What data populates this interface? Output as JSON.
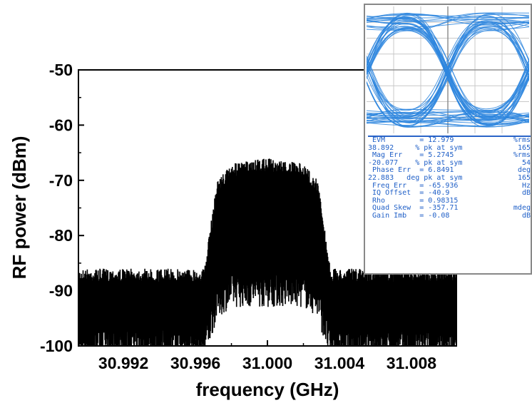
{
  "chart_data": {
    "type": "line",
    "xlabel": "frequency (GHz)",
    "ylabel": "RF power (dBm)",
    "xlim": [
      30.9895,
      31.0105
    ],
    "ylim": [
      -100,
      -50
    ],
    "x_ticks": [
      "30.992",
      "30.996",
      "31.000",
      "31.004",
      "31.008"
    ],
    "x_tick_values": [
      30.992,
      30.996,
      31.0,
      31.004,
      31.008
    ],
    "y_ticks": [
      "-50",
      "-60",
      "-70",
      "-80",
      "-90",
      "-100"
    ],
    "y_tick_values": [
      -50,
      -60,
      -70,
      -80,
      -90,
      -100
    ],
    "grid": false,
    "series": [
      {
        "color": "#000000",
        "description_points": {
          "x": [
            30.9895,
            30.992,
            30.994,
            30.9965,
            30.9972,
            30.998,
            31.0,
            31.002,
            31.0028,
            31.0035,
            31.006,
            31.008,
            31.0105
          ],
          "y_max": [
            -86,
            -86,
            -86,
            -86,
            -70,
            -67,
            -66,
            -67,
            -70,
            -86,
            -86,
            -86,
            -86
          ],
          "y_min": [
            -100,
            -100,
            -100,
            -100,
            -92,
            -90,
            -90,
            -90,
            -92,
            -100,
            -100,
            -100,
            -100
          ]
        }
      }
    ]
  },
  "inset": {
    "trace_color": "#2e86de",
    "readout": [
      {
        "left": " EVM        = 12.979",
        "right": "%rms"
      },
      {
        "left": "38.892     % pk at sym",
        "right": "165"
      },
      {
        "left": " Mag Err    = 5.2745",
        "right": "%rms"
      },
      {
        "left": "-20.077    % pk at sym",
        "right": "54"
      },
      {
        "left": " Phase Err  = 6.8491",
        "right": "deg"
      },
      {
        "left": "22.883   deg pk at sym",
        "right": "165"
      },
      {
        "left": " Freq Err   = -65.936",
        "right": "Hz"
      },
      {
        "left": " IQ Offset  = -40.9",
        "right": "dB"
      },
      {
        "left": " Rho        = 0.98315",
        "right": ""
      },
      {
        "left": " Quad Skew  = -357.71",
        "right": "mdeg"
      },
      {
        "left": " Gain Imb   = -0.08",
        "right": "dB"
      }
    ]
  }
}
